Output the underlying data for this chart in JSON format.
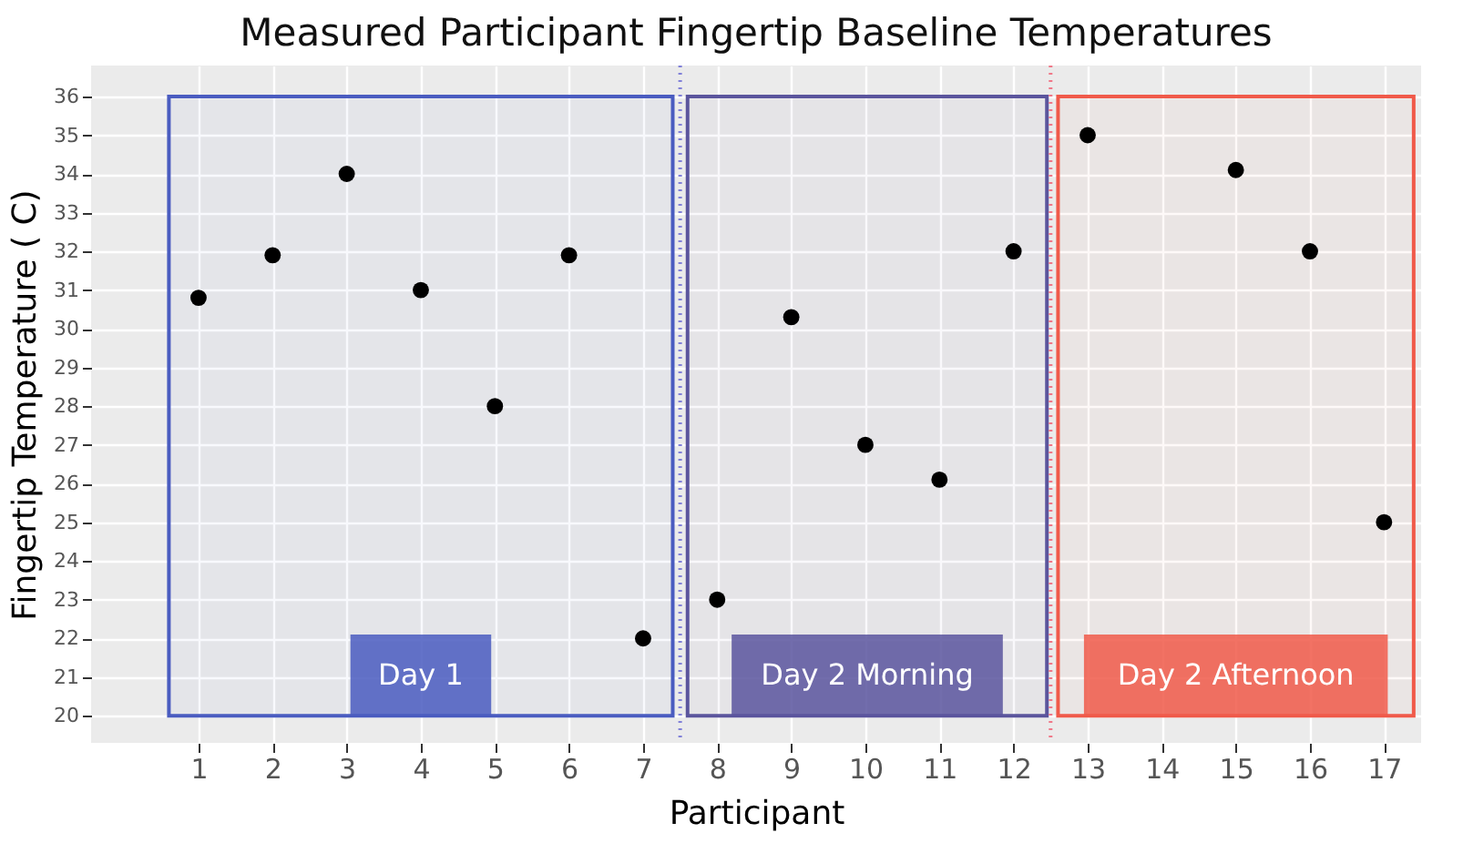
{
  "chart_data": {
    "type": "scatter",
    "title": "Measured Participant Fingertip Baseline Temperatures",
    "xlabel": "Participant",
    "ylabel": "Fingertip Temperature ( C)",
    "x": [
      1,
      2,
      3,
      4,
      5,
      6,
      7,
      8,
      9,
      10,
      11,
      12,
      13,
      15,
      16,
      17
    ],
    "series": [
      {
        "color": "#000000",
        "values": [
          30.8,
          31.9,
          34,
          31,
          28,
          31.9,
          22,
          23,
          30.3,
          27,
          26.1,
          32,
          35,
          34.1,
          32,
          25
        ]
      }
    ],
    "xlim": [
      -0.45,
      17.5
    ],
    "xticks": [
      1,
      2,
      3,
      4,
      5,
      6,
      7,
      8,
      9,
      10,
      11,
      12,
      13,
      14,
      15,
      16,
      17
    ],
    "ylim": [
      19.3,
      36.8
    ],
    "yticks": [
      20,
      21,
      22,
      23,
      24,
      25,
      26,
      27,
      28,
      29,
      30,
      31,
      32,
      33,
      34,
      35,
      36
    ],
    "bands": [
      {
        "axis": "x",
        "from": 0.6,
        "to": 7.4,
        "label": "Day 1",
        "color": "#4a5cc0"
      },
      {
        "axis": "x",
        "from": 7.6,
        "to": 12.45,
        "label": "Day 2 Morning",
        "color": "#5b559d"
      },
      {
        "axis": "x",
        "from": 12.6,
        "to": 17.4,
        "label": "Day 2 Afternoon",
        "color": "#f05a4a"
      }
    ],
    "ref_lines": [
      {
        "axis": "x",
        "value": 7.5,
        "color": "#8080d8",
        "line_style": "dotted"
      },
      {
        "axis": "x",
        "value": 12.5,
        "color": "#f07888",
        "line_style": "dotted"
      }
    ],
    "grid": true,
    "marker": "circle"
  }
}
